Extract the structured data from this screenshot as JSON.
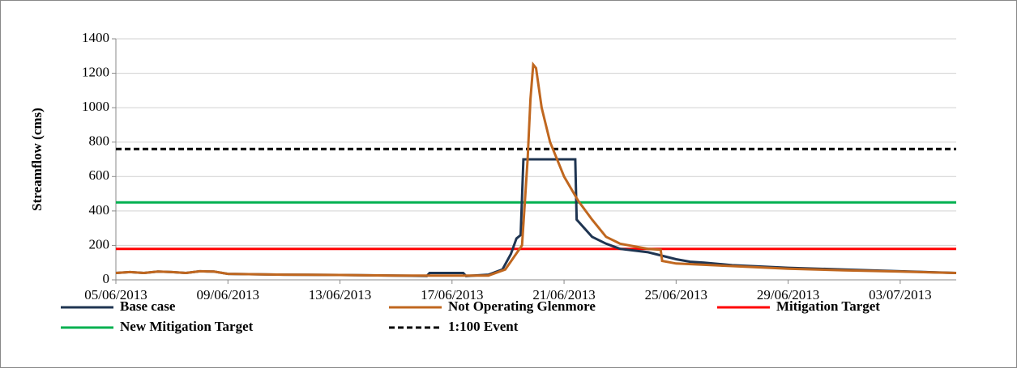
{
  "chart_data": {
    "type": "line",
    "ylabel": "Streamflow (cms)",
    "xlim": [
      0,
      30
    ],
    "xticks": [
      {
        "value": 0,
        "label": "05/06/2013"
      },
      {
        "value": 4,
        "label": "09/06/2013"
      },
      {
        "value": 8,
        "label": "13/06/2013"
      },
      {
        "value": 12,
        "label": "17/06/2013"
      },
      {
        "value": 16,
        "label": "21/06/2013"
      },
      {
        "value": 20,
        "label": "25/06/2013"
      },
      {
        "value": 24,
        "label": "29/06/2013"
      },
      {
        "value": 28,
        "label": "03/07/2013"
      }
    ],
    "ylim": [
      0,
      1400
    ],
    "yticks": [
      0,
      200,
      400,
      600,
      800,
      1000,
      1200,
      1400
    ],
    "grid": true,
    "series": [
      {
        "name": "Base case",
        "color": "#1f3552",
        "x": [
          0,
          0.5,
          1,
          1.5,
          2,
          2.5,
          3,
          3.5,
          4,
          6,
          8,
          10,
          11.1,
          11.2,
          12.4,
          12.5,
          13.3,
          13.8,
          14.1,
          14.3,
          14.45,
          14.55,
          16.4,
          16.45,
          17,
          17.5,
          18,
          19,
          20,
          20.5,
          21,
          22,
          24,
          26,
          28,
          30
        ],
        "values": [
          40,
          45,
          40,
          48,
          45,
          40,
          50,
          48,
          35,
          30,
          28,
          25,
          22,
          40,
          40,
          22,
          30,
          60,
          150,
          240,
          260,
          700,
          700,
          350,
          250,
          210,
          180,
          160,
          120,
          105,
          100,
          85,
          70,
          60,
          50,
          40
        ]
      },
      {
        "name": "Not Operating Glenmore",
        "color": "#c0671f",
        "x": [
          0,
          0.5,
          1,
          1.5,
          2,
          2.5,
          3,
          3.5,
          4,
          6,
          8,
          10,
          11.1,
          13.3,
          13.9,
          14.5,
          14.7,
          14.8,
          14.9,
          15.0,
          15.2,
          15.5,
          16,
          16.5,
          17,
          17.5,
          18,
          19,
          19.45,
          19.5,
          20,
          22,
          24,
          26,
          28,
          30
        ],
        "values": [
          40,
          45,
          40,
          48,
          45,
          40,
          50,
          48,
          35,
          30,
          28,
          25,
          25,
          25,
          60,
          200,
          700,
          1050,
          1250,
          1230,
          1000,
          800,
          600,
          460,
          350,
          250,
          210,
          180,
          175,
          110,
          95,
          80,
          65,
          55,
          48,
          40
        ]
      },
      {
        "name": "Mitigation Target",
        "color": "#ff0000",
        "x": [
          0,
          30
        ],
        "values": [
          180,
          180
        ]
      },
      {
        "name": "New Mitigation Target",
        "color": "#00b050",
        "x": [
          0,
          30
        ],
        "values": [
          450,
          450
        ]
      },
      {
        "name": "1:100 Event",
        "color": "#000000",
        "dash": true,
        "x": [
          0,
          30
        ],
        "values": [
          760,
          760
        ]
      }
    ]
  }
}
